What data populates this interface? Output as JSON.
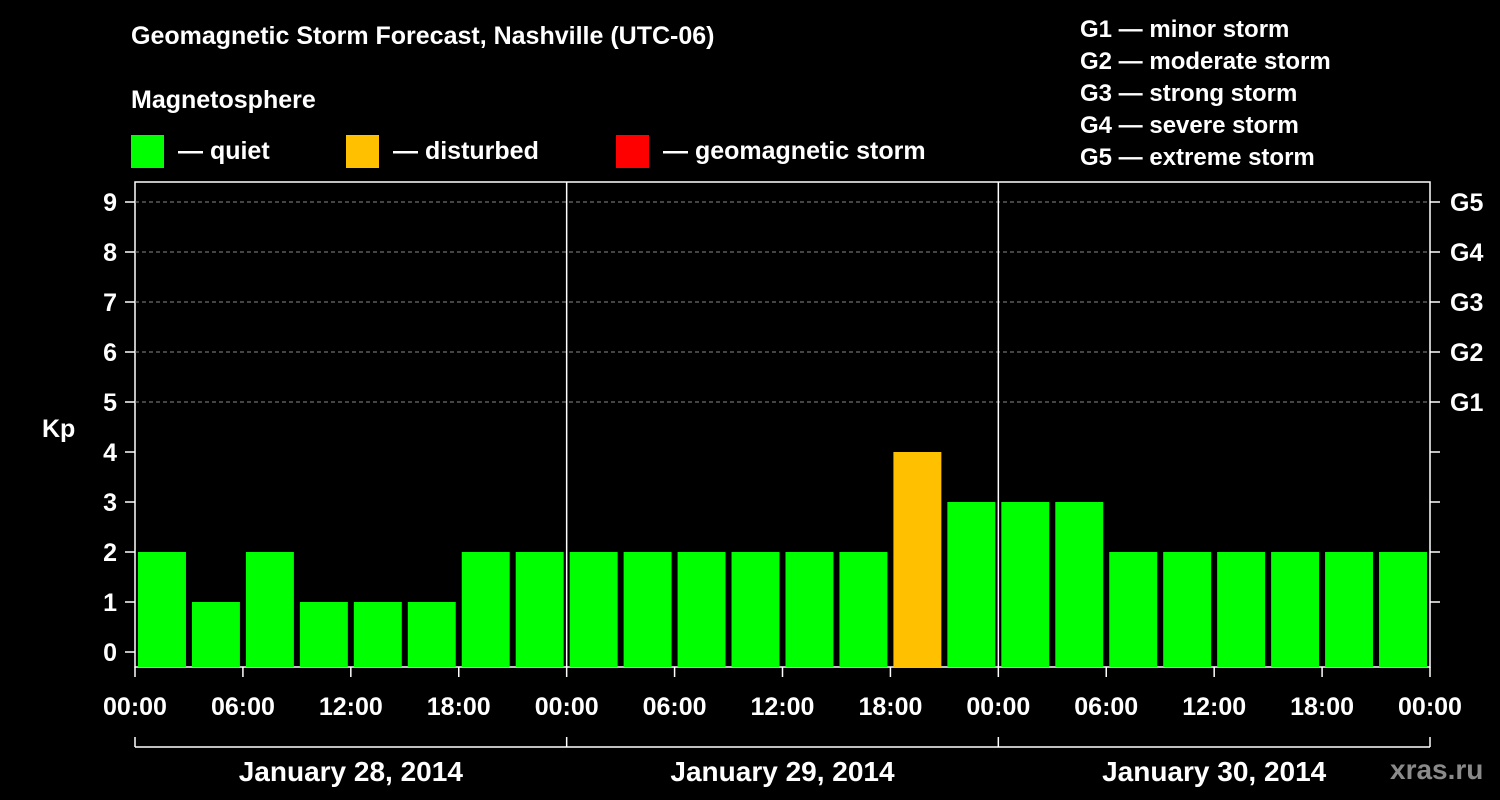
{
  "title": "Geomagnetic Storm Forecast, Nashville (UTC-06)",
  "subtitle": "Magnetosphere",
  "legend": [
    {
      "label": "— quiet",
      "color": "#00ff00"
    },
    {
      "label": "— disturbed",
      "color": "#ffc000"
    },
    {
      "label": "— geomagnetic storm",
      "color": "#ff0000"
    }
  ],
  "storm_levels": [
    "G1 — minor storm",
    "G2 — moderate storm",
    "G3 — strong storm",
    "G4 — severe storm",
    "G5 — extreme storm"
  ],
  "watermark": "xras.ru",
  "chart_data": {
    "type": "bar",
    "title": "Geomagnetic Storm Forecast, Nashville (UTC-06)",
    "ylabel": "Kp",
    "ylim": [
      0,
      9
    ],
    "yticks": [
      0,
      1,
      2,
      3,
      4,
      5,
      6,
      7,
      8,
      9
    ],
    "right_ticks": [
      {
        "kp": 5,
        "label": "G1"
      },
      {
        "kp": 6,
        "label": "G2"
      },
      {
        "kp": 7,
        "label": "G3"
      },
      {
        "kp": 8,
        "label": "G4"
      },
      {
        "kp": 9,
        "label": "G5"
      }
    ],
    "grid": true,
    "x_tick_labels": [
      "00:00",
      "06:00",
      "12:00",
      "18:00",
      "00:00",
      "06:00",
      "12:00",
      "18:00",
      "00:00",
      "06:00",
      "12:00",
      "18:00",
      "00:00"
    ],
    "days": [
      "January 28, 2014",
      "January 29, 2014",
      "January 30, 2014"
    ],
    "interval_hours": 3,
    "values": [
      2,
      1,
      2,
      1,
      1,
      1,
      2,
      2,
      2,
      2,
      2,
      2,
      2,
      2,
      4,
      3,
      3,
      3,
      2,
      2,
      2,
      2,
      2,
      2
    ],
    "thresholds": {
      "quiet_max": 3,
      "disturbed_max": 4
    },
    "colors": {
      "quiet": "#00ff00",
      "disturbed": "#ffc000",
      "storm": "#ff0000"
    }
  }
}
